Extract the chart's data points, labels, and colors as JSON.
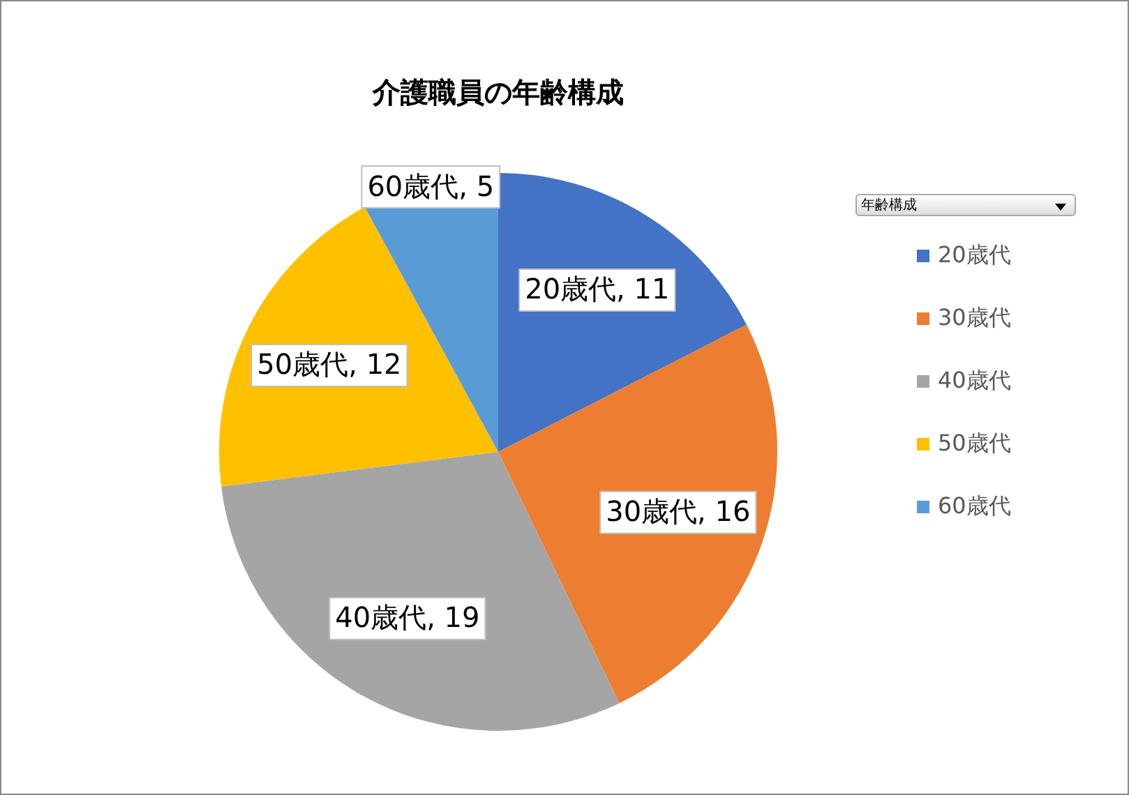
{
  "chart_data": {
    "type": "pie",
    "title": "介護職員の年齢構成",
    "legend_title": "年齢構成",
    "categories": [
      "20歳代",
      "30歳代",
      "40歳代",
      "50歳代",
      "60歳代"
    ],
    "values": [
      11,
      16,
      19,
      12,
      5
    ],
    "colors": [
      "#4472c4",
      "#ed7d31",
      "#a5a5a5",
      "#ffc000",
      "#5b9bd5"
    ],
    "value_labels": [
      "20歳代, 11",
      "30歳代, 16",
      "40歳代, 19",
      "50歳代, 12",
      "60歳代, 5"
    ],
    "legend": "right"
  }
}
